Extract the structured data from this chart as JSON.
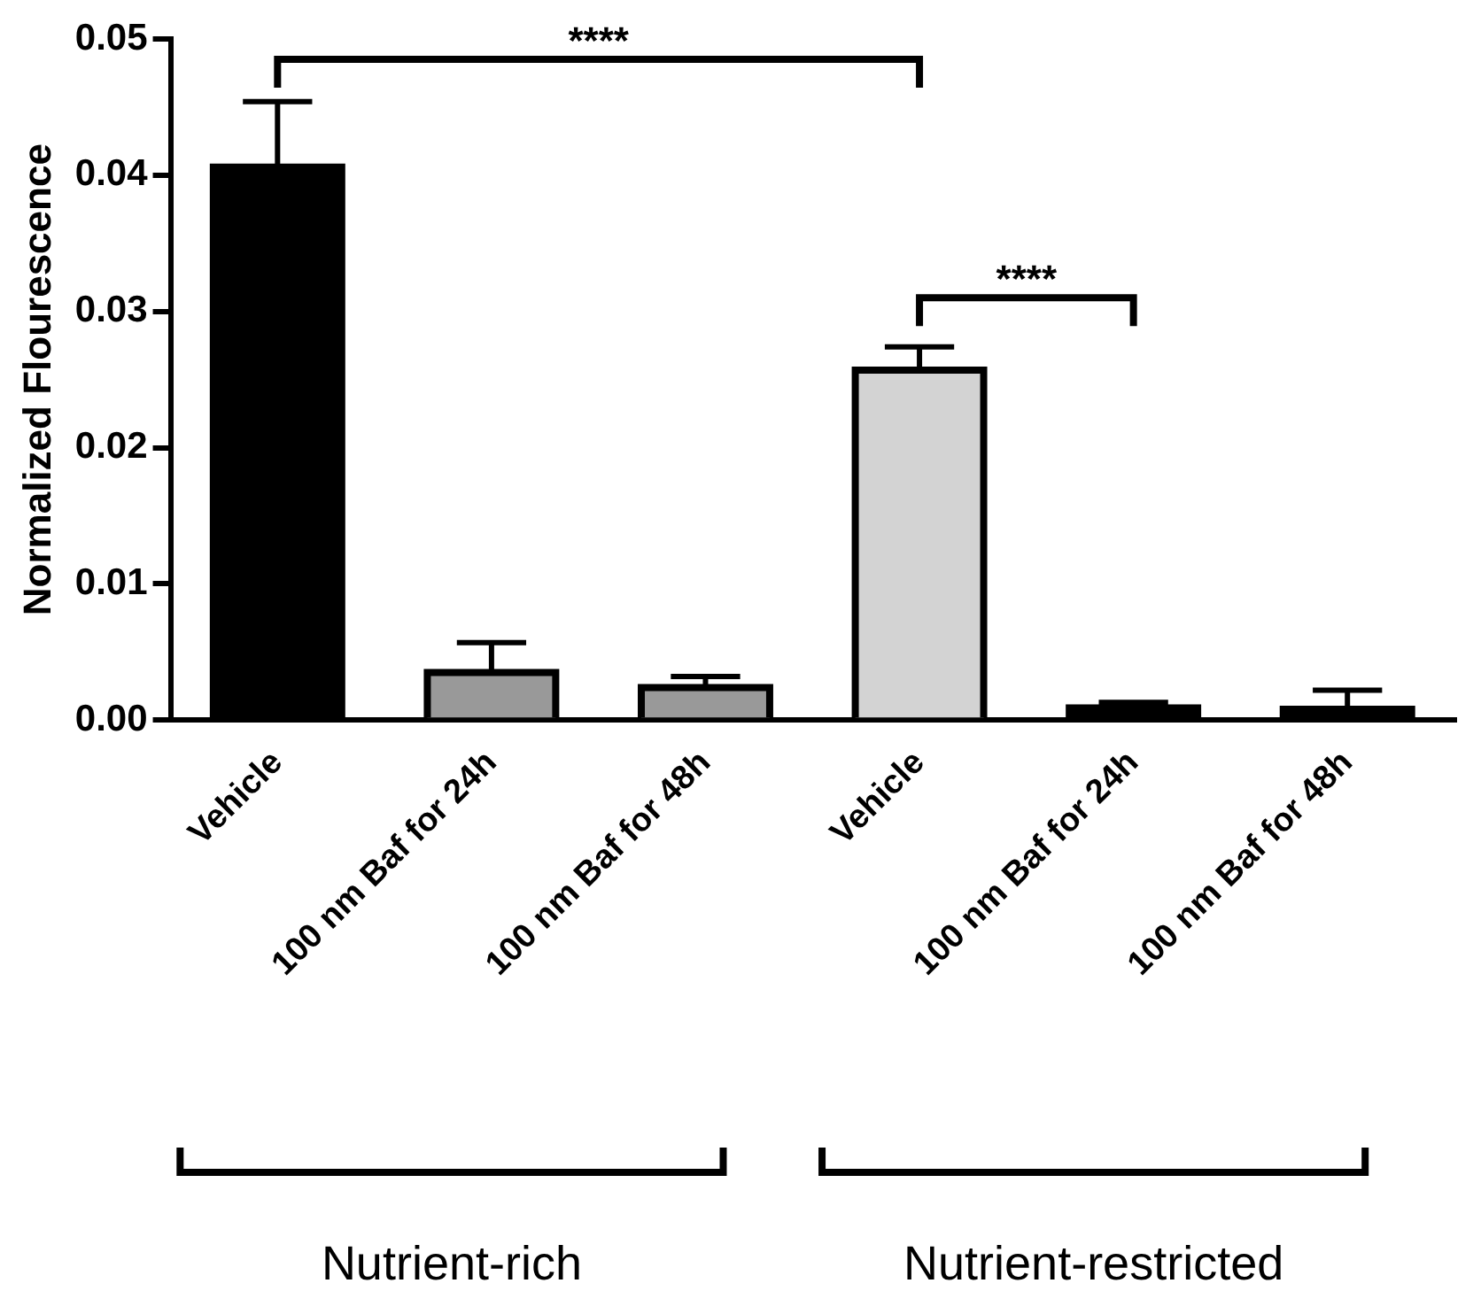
{
  "chart_data": {
    "type": "bar",
    "ylabel": "Normalized Flourescence",
    "categories": [
      "Vehicle",
      "100 nm Baf for 24h",
      "100 nm Baf for 48h",
      "Vehicle",
      "100 nm Baf for 24h",
      "100 nm Baf for 48h"
    ],
    "values": [
      0.0406,
      0.0035,
      0.0024,
      0.0257,
      0.0009,
      0.0008
    ],
    "errors": [
      0.0048,
      0.0022,
      0.0008,
      0.0017,
      0.0004,
      0.0014
    ],
    "colors": [
      "#000000",
      "#999999",
      "#999999",
      "#d3d3d3",
      "#000000",
      "#000000"
    ],
    "ylim": [
      0,
      0.05
    ],
    "yticks": [
      {
        "value": 0,
        "label": "0.00"
      },
      0.01,
      0.02,
      0.03,
      0.04,
      0.05
    ],
    "grid": false,
    "legend": false,
    "annotations": [
      "****",
      "****",
      "Nutrient-rich",
      "Nutrient-restricted"
    ]
  }
}
